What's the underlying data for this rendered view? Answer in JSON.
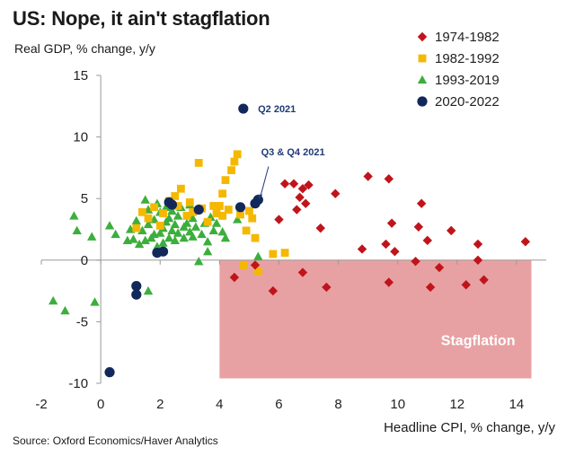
{
  "title": "US: Nope, it ain't stagflation",
  "source": "Source: Oxford Economics/Haver Analytics",
  "colors": {
    "s1974": "#c0141b",
    "s1982": "#f5b800",
    "s1993": "#3cae3c",
    "s2020": "#13285a",
    "stagflation_fill": "#e8a1a3",
    "annotation": "#1f3a78"
  },
  "chart_data": {
    "type": "scatter",
    "title": "US: Nope, it ain't stagflation",
    "xlabel": "Headline CPI, % change, y/y",
    "ylabel": "Real GDP, % change, y/y",
    "xlim": [
      -2,
      15
    ],
    "ylim": [
      -10,
      15
    ],
    "xticks": [
      -2,
      0,
      2,
      4,
      6,
      8,
      10,
      12,
      14
    ],
    "yticks": [
      -10,
      -5,
      0,
      5,
      10,
      15
    ],
    "grid": false,
    "legend_position": "top-right",
    "shaded_region": {
      "label": "Stagflation",
      "x": [
        4,
        14.5
      ],
      "y": [
        -9.6,
        0
      ]
    },
    "annotations": [
      {
        "text": "Q2 2021",
        "x": 4.9,
        "y": 12.3
      },
      {
        "text": "Q3 & Q4 2021",
        "x": 5.3,
        "y": 4.6
      }
    ],
    "series": [
      {
        "name": "1974-1982",
        "marker": "diamond",
        "points": [
          [
            4.5,
            -1.4
          ],
          [
            5.2,
            -0.4
          ],
          [
            5.8,
            -2.5
          ],
          [
            6.0,
            3.3
          ],
          [
            6.2,
            6.2
          ],
          [
            6.5,
            6.2
          ],
          [
            6.6,
            4.1
          ],
          [
            6.7,
            5.1
          ],
          [
            6.8,
            5.8
          ],
          [
            6.9,
            4.6
          ],
          [
            7.0,
            6.1
          ],
          [
            6.8,
            -1.0
          ],
          [
            7.4,
            2.6
          ],
          [
            7.6,
            -2.2
          ],
          [
            7.9,
            5.4
          ],
          [
            8.8,
            0.9
          ],
          [
            9.0,
            6.8
          ],
          [
            9.6,
            1.3
          ],
          [
            9.7,
            6.6
          ],
          [
            9.8,
            3.0
          ],
          [
            9.9,
            0.7
          ],
          [
            9.7,
            -1.8
          ],
          [
            10.6,
            -0.1
          ],
          [
            10.7,
            2.7
          ],
          [
            10.8,
            4.6
          ],
          [
            11.0,
            1.6
          ],
          [
            11.1,
            -2.2
          ],
          [
            11.4,
            -0.6
          ],
          [
            11.8,
            2.4
          ],
          [
            12.3,
            -2.0
          ],
          [
            12.7,
            1.3
          ],
          [
            12.7,
            0.0
          ],
          [
            12.9,
            -1.6
          ],
          [
            14.3,
            1.5
          ]
        ]
      },
      {
        "name": "1982-1992",
        "marker": "square",
        "points": [
          [
            1.2,
            2.6
          ],
          [
            1.4,
            3.9
          ],
          [
            1.6,
            3.4
          ],
          [
            1.8,
            4.3
          ],
          [
            2.0,
            2.8
          ],
          [
            2.1,
            3.8
          ],
          [
            2.3,
            4.8
          ],
          [
            2.5,
            5.2
          ],
          [
            2.6,
            4.4
          ],
          [
            2.7,
            5.8
          ],
          [
            2.9,
            3.6
          ],
          [
            3.0,
            4.7
          ],
          [
            3.1,
            3.9
          ],
          [
            3.3,
            7.9
          ],
          [
            3.4,
            4.2
          ],
          [
            3.6,
            3.1
          ],
          [
            3.8,
            4.4
          ],
          [
            3.9,
            3.8
          ],
          [
            4.0,
            4.4
          ],
          [
            4.1,
            3.6
          ],
          [
            4.1,
            5.4
          ],
          [
            4.2,
            6.5
          ],
          [
            4.3,
            4.1
          ],
          [
            4.4,
            7.3
          ],
          [
            4.5,
            8.0
          ],
          [
            4.6,
            8.6
          ],
          [
            4.7,
            3.7
          ],
          [
            4.9,
            2.4
          ],
          [
            5.0,
            4.0
          ],
          [
            5.2,
            1.8
          ],
          [
            5.1,
            3.4
          ],
          [
            4.8,
            -0.4
          ],
          [
            5.3,
            -0.9
          ],
          [
            5.8,
            0.5
          ],
          [
            6.2,
            0.6
          ]
        ]
      },
      {
        "name": "1993-2019",
        "marker": "triangle",
        "points": [
          [
            -1.6,
            -3.3
          ],
          [
            -1.2,
            -4.1
          ],
          [
            -0.9,
            3.6
          ],
          [
            -0.8,
            2.4
          ],
          [
            -0.3,
            1.9
          ],
          [
            -0.2,
            -3.4
          ],
          [
            0.3,
            2.8
          ],
          [
            0.5,
            2.1
          ],
          [
            0.9,
            1.6
          ],
          [
            1.0,
            2.5
          ],
          [
            1.1,
            1.7
          ],
          [
            1.2,
            3.2
          ],
          [
            1.3,
            1.3
          ],
          [
            1.4,
            2.4
          ],
          [
            1.5,
            4.9
          ],
          [
            1.5,
            1.6
          ],
          [
            1.6,
            2.9
          ],
          [
            1.6,
            4.1
          ],
          [
            1.7,
            1.8
          ],
          [
            1.8,
            3.3
          ],
          [
            1.8,
            2.1
          ],
          [
            1.9,
            4.6
          ],
          [
            1.9,
            1.1
          ],
          [
            2.0,
            3.9
          ],
          [
            2.0,
            2.2
          ],
          [
            2.1,
            2.6
          ],
          [
            2.1,
            1.4
          ],
          [
            2.2,
            4.3
          ],
          [
            2.2,
            3.1
          ],
          [
            2.3,
            1.8
          ],
          [
            2.3,
            3.4
          ],
          [
            2.4,
            2.4
          ],
          [
            2.4,
            4.0
          ],
          [
            2.5,
            2.9
          ],
          [
            2.5,
            1.6
          ],
          [
            2.6,
            3.6
          ],
          [
            2.6,
            2.2
          ],
          [
            2.7,
            4.3
          ],
          [
            2.8,
            2.7
          ],
          [
            2.8,
            1.8
          ],
          [
            2.9,
            3.0
          ],
          [
            3.0,
            2.3
          ],
          [
            3.0,
            4.5
          ],
          [
            3.1,
            1.9
          ],
          [
            3.1,
            3.4
          ],
          [
            3.2,
            2.7
          ],
          [
            3.3,
            4.2
          ],
          [
            3.4,
            2.1
          ],
          [
            3.5,
            3.0
          ],
          [
            3.6,
            1.5
          ],
          [
            3.7,
            3.5
          ],
          [
            3.8,
            2.4
          ],
          [
            3.9,
            3.0
          ],
          [
            4.1,
            2.3
          ],
          [
            4.2,
            1.8
          ],
          [
            4.6,
            3.3
          ],
          [
            5.3,
            0.3
          ],
          [
            1.6,
            -2.5
          ],
          [
            3.3,
            -0.1
          ],
          [
            3.6,
            0.7
          ]
        ]
      },
      {
        "name": "2020-2022",
        "marker": "circle",
        "points": [
          [
            0.3,
            -9.1
          ],
          [
            1.2,
            -2.1
          ],
          [
            1.2,
            -2.8
          ],
          [
            1.9,
            0.6
          ],
          [
            2.1,
            0.7
          ],
          [
            2.3,
            4.7
          ],
          [
            2.4,
            4.5
          ],
          [
            3.3,
            4.1
          ],
          [
            4.7,
            4.3
          ],
          [
            4.8,
            12.3
          ],
          [
            5.2,
            4.6
          ],
          [
            5.3,
            4.9
          ]
        ]
      }
    ]
  }
}
